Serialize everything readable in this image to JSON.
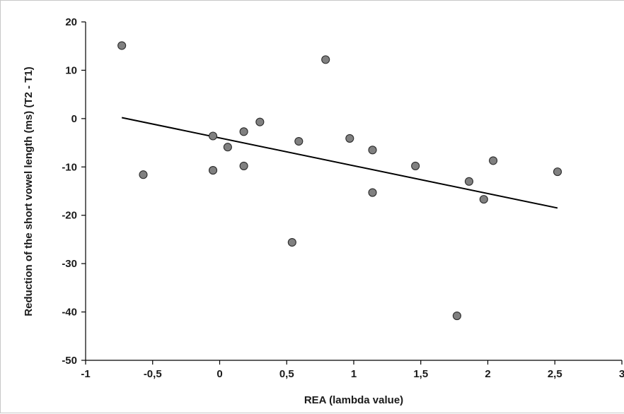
{
  "chart_data": {
    "type": "scatter",
    "title": "",
    "xlabel": "REA (lambda value)",
    "ylabel": "Reduction of the short vowel length (ms) (T2 - T1)",
    "xlim": [
      -1,
      3
    ],
    "ylim": [
      -50,
      20
    ],
    "x_ticks": [
      -1,
      -0.5,
      0,
      0.5,
      1,
      1.5,
      2,
      2.5,
      3
    ],
    "x_tick_labels": [
      "-1",
      "-0,5",
      "0",
      "0,5",
      "1",
      "1,5",
      "2",
      "2,5",
      "3"
    ],
    "y_ticks": [
      20,
      10,
      0,
      -10,
      -20,
      -30,
      -40,
      -50
    ],
    "y_tick_labels": [
      "20",
      "10",
      "0",
      "-10",
      "-20",
      "-30",
      "-40",
      "-50"
    ],
    "grid": false,
    "legend": "none",
    "marker_color": "#808080",
    "marker_edge_color": "#2b2b2b",
    "line_color": "#000000",
    "points": [
      {
        "x": -0.73,
        "y": 15.1
      },
      {
        "x": -0.57,
        "y": -11.6
      },
      {
        "x": -0.05,
        "y": -3.6
      },
      {
        "x": -0.05,
        "y": -10.7
      },
      {
        "x": 0.06,
        "y": -5.9
      },
      {
        "x": 0.18,
        "y": -2.7
      },
      {
        "x": 0.18,
        "y": -9.8
      },
      {
        "x": 0.3,
        "y": -0.7
      },
      {
        "x": 0.54,
        "y": -25.6
      },
      {
        "x": 0.59,
        "y": -4.7
      },
      {
        "x": 0.79,
        "y": 12.2
      },
      {
        "x": 0.97,
        "y": -4.1
      },
      {
        "x": 1.14,
        "y": -6.5
      },
      {
        "x": 1.14,
        "y": -15.3
      },
      {
        "x": 1.46,
        "y": -9.8
      },
      {
        "x": 1.77,
        "y": -40.8
      },
      {
        "x": 1.86,
        "y": -13.0
      },
      {
        "x": 1.97,
        "y": -16.7
      },
      {
        "x": 2.04,
        "y": -8.7
      },
      {
        "x": 2.52,
        "y": -11.0
      }
    ],
    "trendline": {
      "x": [
        -0.73,
        2.52
      ],
      "y": [
        0.2,
        -18.5
      ]
    }
  }
}
